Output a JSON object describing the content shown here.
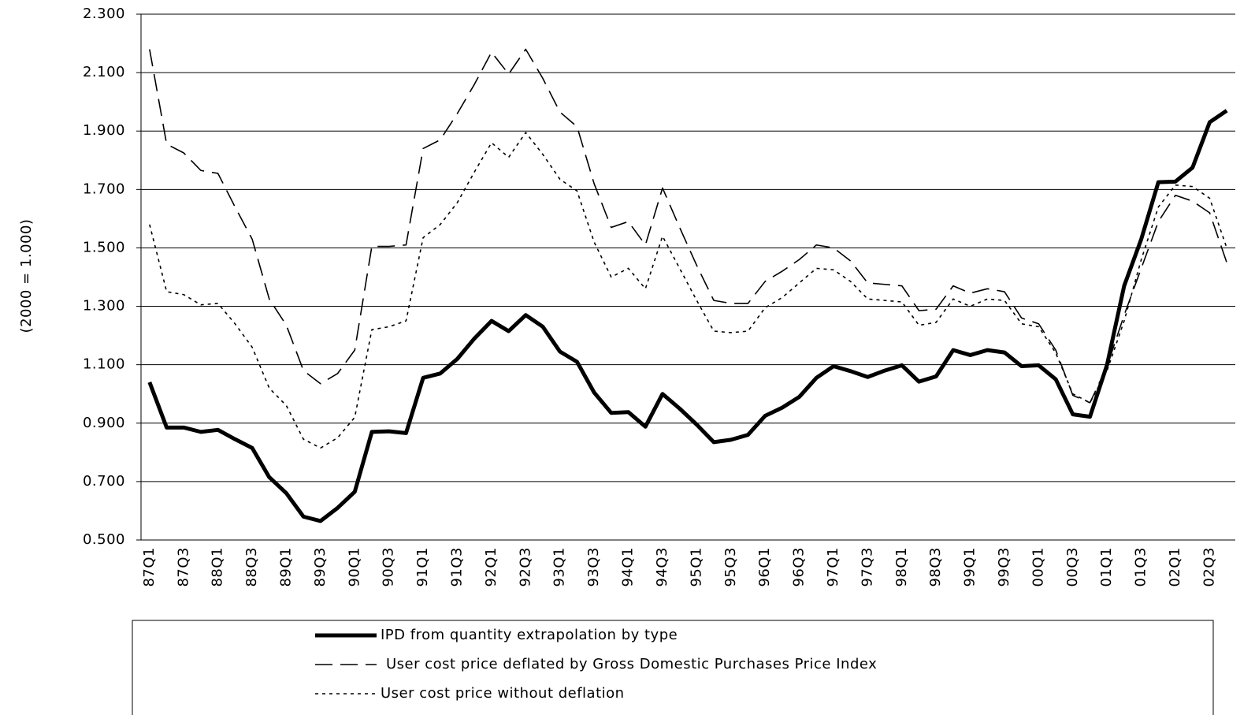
{
  "chart_data": {
    "type": "line",
    "y_label": "(2000 = 1.000)",
    "categories": [
      "87Q1",
      null,
      "87Q3",
      null,
      "88Q1",
      null,
      "88Q3",
      null,
      "89Q1",
      null,
      "89Q3",
      null,
      "90Q1",
      null,
      "90Q3",
      null,
      "91Q1",
      null,
      "91Q3",
      null,
      "92Q1",
      null,
      "92Q3",
      null,
      "93Q1",
      null,
      "93Q3",
      null,
      "94Q1",
      null,
      "94Q3",
      null,
      "95Q1",
      null,
      "95Q3",
      null,
      "96Q1",
      null,
      "96Q3",
      null,
      "97Q1",
      null,
      "97Q3",
      null,
      "98Q1",
      null,
      "98Q3",
      null,
      "99Q1",
      null,
      "99Q3",
      null,
      "00Q1",
      null,
      "00Q3",
      null,
      "01Q1",
      null,
      "01Q3",
      null,
      "02Q1",
      null,
      "02Q3",
      null
    ],
    "series": [
      {
        "name": "IPD from quantity extrapolation by type",
        "color": "#000000",
        "style": "solid",
        "values": [
          1.04,
          0.885,
          0.885,
          0.87,
          0.877,
          0.845,
          0.815,
          0.715,
          0.66,
          0.58,
          0.565,
          0.61,
          0.665,
          0.87,
          0.872,
          0.866,
          1.055,
          1.07,
          1.12,
          1.19,
          1.25,
          1.215,
          1.27,
          1.23,
          1.145,
          1.11,
          1.005,
          0.935,
          0.938,
          0.888,
          1.0,
          0.95,
          0.895,
          0.835,
          0.843,
          0.86,
          0.925,
          0.953,
          0.99,
          1.055,
          1.095,
          1.078,
          1.058,
          1.08,
          1.098,
          1.042,
          1.06,
          1.15,
          1.133,
          1.15,
          1.142,
          1.095,
          1.098,
          1.05,
          0.93,
          0.922,
          1.1,
          1.37,
          1.53,
          1.725,
          1.727,
          1.775,
          1.93,
          1.97
        ]
      },
      {
        "name": "User cost price deflated by Gross Domestic Purchases Price Index",
        "color": "#000000",
        "style": "dashed",
        "values": [
          2.18,
          1.855,
          1.825,
          1.765,
          1.755,
          1.64,
          1.53,
          1.325,
          1.235,
          1.08,
          1.035,
          1.07,
          1.15,
          1.505,
          1.505,
          1.51,
          1.84,
          1.87,
          1.96,
          2.06,
          2.17,
          2.095,
          2.18,
          2.08,
          1.965,
          1.915,
          1.72,
          1.57,
          1.59,
          1.51,
          1.705,
          1.57,
          1.44,
          1.32,
          1.31,
          1.31,
          1.385,
          1.42,
          1.46,
          1.51,
          1.5,
          1.455,
          1.38,
          1.375,
          1.37,
          1.285,
          1.29,
          1.37,
          1.345,
          1.36,
          1.35,
          1.26,
          1.24,
          1.15,
          0.995,
          0.97,
          1.095,
          1.27,
          1.43,
          1.59,
          1.68,
          1.66,
          1.62,
          1.45
        ]
      },
      {
        "name": "User cost price without deflation",
        "color": "#000000",
        "style": "dotted",
        "values": [
          1.58,
          1.35,
          1.34,
          1.305,
          1.31,
          1.24,
          1.16,
          1.02,
          0.96,
          0.845,
          0.815,
          0.85,
          0.92,
          1.22,
          1.23,
          1.25,
          1.535,
          1.58,
          1.655,
          1.76,
          1.86,
          1.81,
          1.895,
          1.82,
          1.735,
          1.695,
          1.52,
          1.4,
          1.43,
          1.36,
          1.54,
          1.43,
          1.32,
          1.215,
          1.21,
          1.215,
          1.295,
          1.33,
          1.38,
          1.43,
          1.425,
          1.385,
          1.325,
          1.32,
          1.315,
          1.235,
          1.245,
          1.325,
          1.3,
          1.325,
          1.32,
          1.24,
          1.23,
          1.14,
          1.0,
          0.97,
          1.08,
          1.25,
          1.46,
          1.64,
          1.715,
          1.71,
          1.67,
          1.5
        ]
      }
    ],
    "ylim": [
      0.5,
      2.3
    ],
    "yticks": [
      {
        "value": 0.5,
        "label": "0.500"
      },
      {
        "value": 0.7,
        "label": "0.700"
      },
      {
        "value": 0.9,
        "label": "0.900"
      },
      {
        "value": 1.1,
        "label": "1.100"
      },
      {
        "value": 1.3,
        "label": "1.300"
      },
      {
        "value": 1.5,
        "label": "1.500"
      },
      {
        "value": 1.7,
        "label": "1.700"
      },
      {
        "value": 1.9,
        "label": "1.900"
      },
      {
        "value": 2.1,
        "label": "2.100"
      },
      {
        "value": 2.3,
        "label": "2.300"
      }
    ],
    "grid": true,
    "legend": "bottom"
  }
}
